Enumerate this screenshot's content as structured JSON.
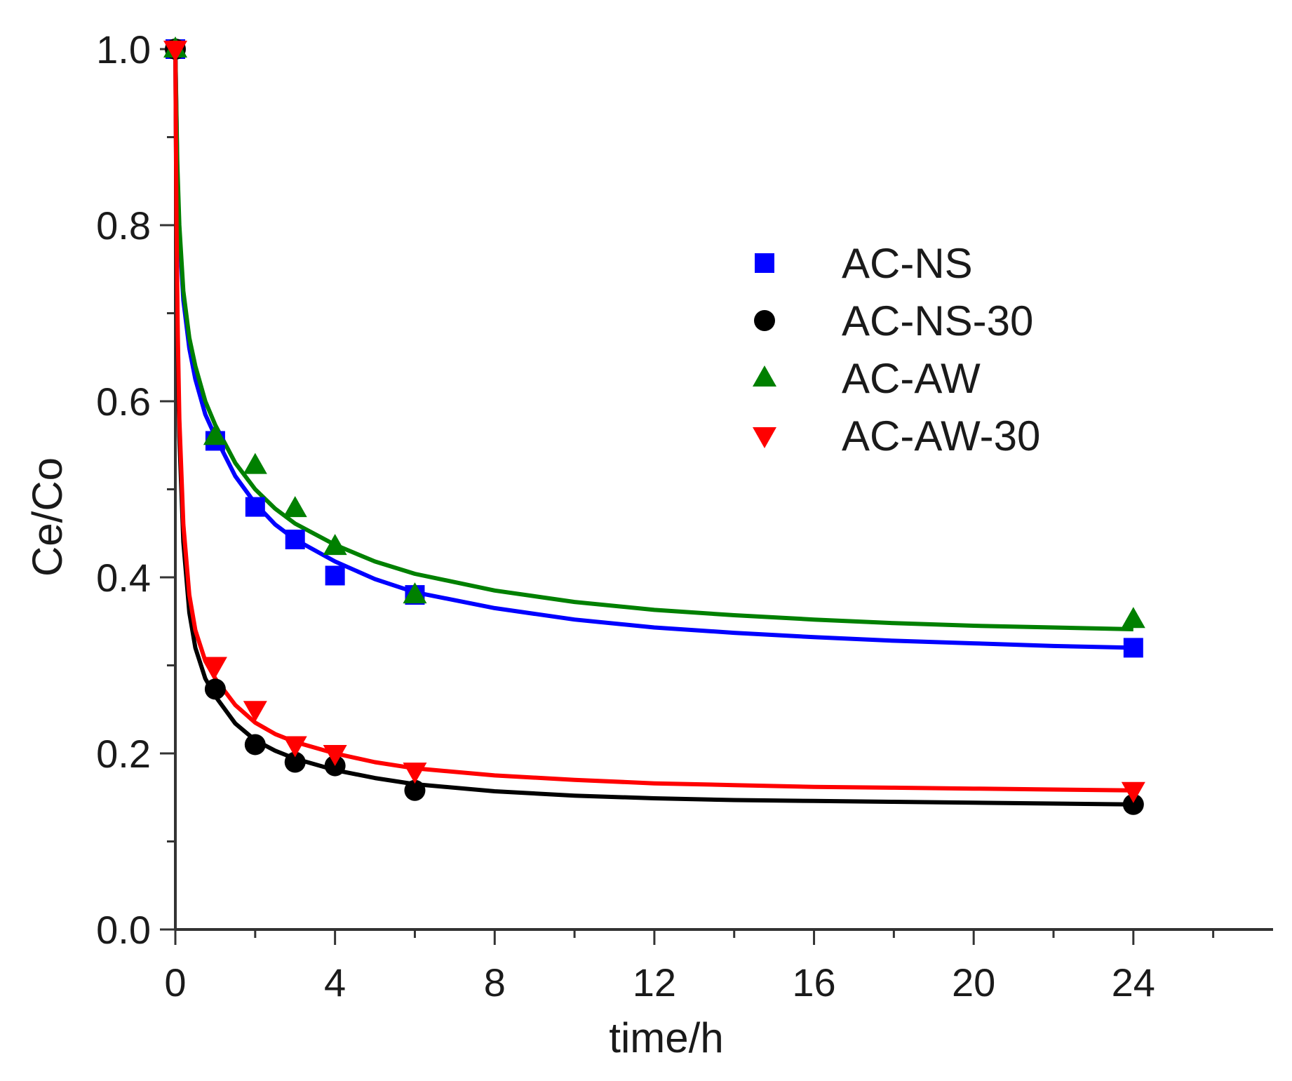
{
  "chart_data": {
    "type": "scatter",
    "xlabel": "time/h",
    "ylabel": "Ce/Co",
    "xlim": [
      0,
      27.5
    ],
    "ylim": [
      0,
      1.0
    ],
    "x_ticks": [
      0,
      4,
      8,
      12,
      16,
      20,
      24
    ],
    "y_ticks": [
      0.0,
      0.2,
      0.4,
      0.6,
      0.8,
      1.0
    ],
    "x_tick_labels": [
      "0",
      "4",
      "8",
      "12",
      "16",
      "20",
      "24"
    ],
    "y_tick_labels": [
      "0.0",
      "0.2",
      "0.4",
      "0.6",
      "0.8",
      "1.0"
    ],
    "legend_position": "top-right",
    "series": [
      {
        "name": "AC-NS",
        "color": "#0000ff",
        "marker": "square",
        "x": [
          0,
          1,
          2,
          3,
          4,
          6,
          24
        ],
        "y": [
          1.0,
          0.555,
          0.48,
          0.443,
          0.402,
          0.38,
          0.32
        ],
        "fit_x": [
          0,
          0.05,
          0.1,
          0.2,
          0.35,
          0.5,
          0.75,
          1,
          1.5,
          2,
          2.5,
          3,
          4,
          5,
          6,
          8,
          10,
          12,
          14,
          16,
          18,
          20,
          22,
          24
        ],
        "fit_y": [
          1.0,
          0.86,
          0.79,
          0.715,
          0.66,
          0.625,
          0.585,
          0.56,
          0.515,
          0.484,
          0.46,
          0.443,
          0.418,
          0.398,
          0.383,
          0.365,
          0.352,
          0.343,
          0.337,
          0.332,
          0.328,
          0.325,
          0.322,
          0.32
        ]
      },
      {
        "name": "AC-NS-30",
        "color": "#000000",
        "marker": "circle",
        "x": [
          0,
          1,
          2,
          3,
          4,
          6,
          24
        ],
        "y": [
          1.0,
          0.273,
          0.21,
          0.19,
          0.186,
          0.158,
          0.142
        ],
        "fit_x": [
          0,
          0.03,
          0.06,
          0.1,
          0.2,
          0.35,
          0.5,
          0.75,
          1,
          1.5,
          2,
          2.5,
          3,
          4,
          5,
          6,
          8,
          10,
          12,
          14,
          16,
          18,
          20,
          22,
          24
        ],
        "fit_y": [
          1.0,
          0.78,
          0.66,
          0.56,
          0.44,
          0.36,
          0.32,
          0.285,
          0.265,
          0.234,
          0.215,
          0.203,
          0.194,
          0.181,
          0.172,
          0.165,
          0.157,
          0.152,
          0.149,
          0.147,
          0.146,
          0.145,
          0.144,
          0.143,
          0.142
        ]
      },
      {
        "name": "AC-AW",
        "color": "#008000",
        "marker": "triangle-up",
        "x": [
          0,
          1,
          2,
          3,
          4,
          6,
          24
        ],
        "y": [
          1.0,
          0.56,
          0.527,
          0.478,
          0.435,
          0.38,
          0.352
        ],
        "fit_x": [
          0,
          0.05,
          0.1,
          0.2,
          0.35,
          0.5,
          0.75,
          1,
          1.5,
          2,
          2.5,
          3,
          4,
          5,
          6,
          8,
          10,
          12,
          14,
          16,
          18,
          20,
          22,
          24
        ],
        "fit_y": [
          1.0,
          0.87,
          0.8,
          0.725,
          0.672,
          0.64,
          0.6,
          0.573,
          0.53,
          0.5,
          0.478,
          0.461,
          0.437,
          0.418,
          0.404,
          0.385,
          0.372,
          0.363,
          0.357,
          0.352,
          0.348,
          0.345,
          0.343,
          0.341
        ]
      },
      {
        "name": "AC-AW-30",
        "color": "#ff0000",
        "marker": "triangle-down",
        "x": [
          0,
          1,
          2,
          3,
          4,
          6,
          24
        ],
        "y": [
          1.0,
          0.3,
          0.25,
          0.21,
          0.2,
          0.18,
          0.158
        ],
        "fit_x": [
          0,
          0.03,
          0.06,
          0.1,
          0.2,
          0.35,
          0.5,
          0.75,
          1,
          1.5,
          2,
          2.5,
          3,
          4,
          5,
          6,
          8,
          10,
          12,
          14,
          16,
          18,
          20,
          22,
          24
        ],
        "fit_y": [
          1.0,
          0.8,
          0.68,
          0.58,
          0.46,
          0.38,
          0.34,
          0.305,
          0.285,
          0.255,
          0.235,
          0.222,
          0.213,
          0.2,
          0.19,
          0.183,
          0.175,
          0.17,
          0.166,
          0.164,
          0.162,
          0.161,
          0.16,
          0.159,
          0.158
        ]
      }
    ]
  }
}
